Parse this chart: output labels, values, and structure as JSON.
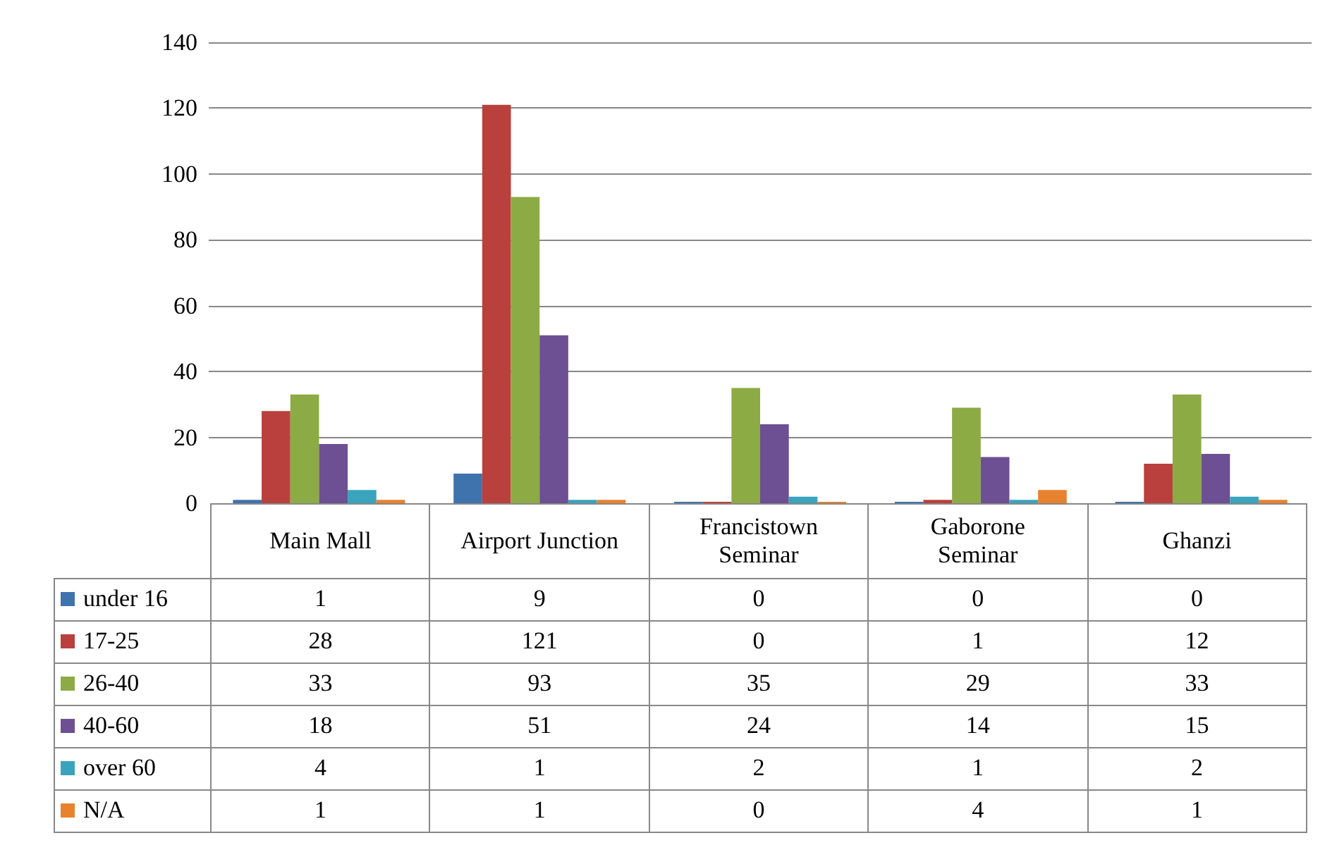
{
  "chart_data": {
    "type": "bar",
    "categories": [
      "Main Mall",
      "Airport Junction",
      "Francistown Seminar",
      "Gaborone Seminar",
      "Ghanzi"
    ],
    "series": [
      {
        "name": "under 16",
        "color": "#3f73ad",
        "values": [
          1,
          9,
          0,
          0,
          0
        ]
      },
      {
        "name": "17-25",
        "color": "#b9403d",
        "values": [
          28,
          121,
          0,
          1,
          12
        ]
      },
      {
        "name": "26-40",
        "color": "#8cab44",
        "values": [
          33,
          93,
          35,
          29,
          33
        ]
      },
      {
        "name": "40-60",
        "color": "#6d4f94",
        "values": [
          18,
          51,
          24,
          14,
          15
        ]
      },
      {
        "name": "over 60",
        "color": "#3aa3bd",
        "values": [
          4,
          1,
          2,
          1,
          2
        ]
      },
      {
        "name": "N/A",
        "color": "#e8822f",
        "values": [
          1,
          1,
          0,
          4,
          1
        ]
      }
    ],
    "ylim": [
      0,
      140
    ],
    "yticks": [
      0,
      20,
      40,
      60,
      80,
      100,
      120,
      140
    ],
    "grid": "y",
    "legend": "bottom",
    "data_labels": true
  }
}
